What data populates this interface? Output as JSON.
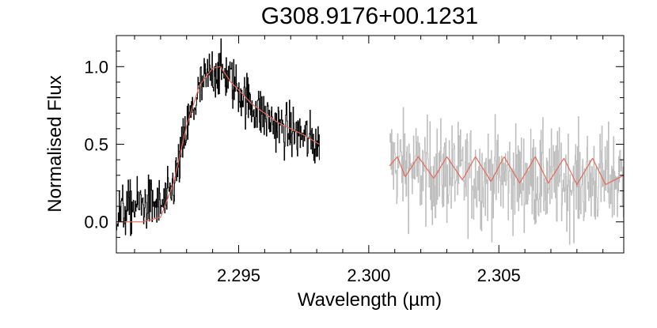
{
  "chart_data": {
    "type": "line",
    "title": "G308.9176+00.1231",
    "xlabel": "Wavelength (µm)",
    "ylabel": "Normalised Flux",
    "xlim": [
      2.2903,
      2.3098
    ],
    "ylim": [
      -0.2,
      1.2
    ],
    "x_ticks": [
      2.295,
      2.3,
      2.305
    ],
    "x_tick_labels": [
      "2.295",
      "2.300",
      "2.305"
    ],
    "y_ticks": [
      0.0,
      0.5,
      1.0
    ],
    "y_tick_labels": [
      "0.0",
      "0.5",
      "1.0"
    ],
    "grid": false,
    "legend": "none",
    "colors": {
      "observed_spectrum": "#000000",
      "second_spectrum": "#bdbdbd",
      "model_fit": "#e8675a"
    },
    "series": [
      {
        "style": "noisy-step",
        "x_range": [
          2.2903,
          2.2981
        ],
        "noise": 0.15,
        "x": [
          2.2903,
          2.291,
          2.2915,
          2.292,
          2.2923,
          2.2926,
          2.293,
          2.2935,
          2.294,
          2.2945,
          2.295,
          2.2955,
          2.296,
          2.2965,
          2.297,
          2.2975,
          2.2978,
          2.2981
        ],
        "y": [
          0.05,
          0.1,
          0.12,
          0.1,
          0.15,
          0.3,
          0.6,
          0.85,
          0.98,
          0.95,
          0.85,
          0.75,
          0.68,
          0.62,
          0.58,
          0.55,
          0.52,
          0.5
        ]
      },
      {
        "style": "noisy-step",
        "x_range": [
          2.3008,
          2.3098
        ],
        "noise": 0.28,
        "x": [
          2.3008,
          2.302,
          2.304,
          2.306,
          2.308,
          2.3098
        ],
        "y": [
          0.4,
          0.32,
          0.3,
          0.28,
          0.26,
          0.28
        ]
      },
      {
        "style": "smooth",
        "x_range": [
          2.2903,
          2.2981
        ],
        "x": [
          2.2903,
          2.2913,
          2.292,
          2.2925,
          2.293,
          2.2935,
          2.294,
          2.2943,
          2.2947,
          2.295,
          2.2955,
          2.296,
          2.2965,
          2.297,
          2.2975,
          2.2981
        ],
        "y": [
          0.0,
          0.0,
          0.03,
          0.25,
          0.62,
          0.88,
          0.99,
          1.0,
          0.9,
          0.85,
          0.76,
          0.7,
          0.64,
          0.6,
          0.56,
          0.5
        ]
      },
      {
        "style": "periodic",
        "x_range": [
          2.3008,
          2.3098
        ],
        "x": [
          2.3008,
          2.3011,
          2.3014,
          2.3019,
          2.3025,
          2.303,
          2.3036,
          2.3041,
          2.3047,
          2.3052,
          2.3058,
          2.3064,
          2.3069,
          2.3075,
          2.308,
          2.3086,
          2.3091,
          2.3098
        ],
        "y": [
          0.36,
          0.42,
          0.29,
          0.42,
          0.28,
          0.42,
          0.27,
          0.42,
          0.26,
          0.42,
          0.25,
          0.42,
          0.25,
          0.41,
          0.24,
          0.41,
          0.24,
          0.3
        ]
      }
    ]
  }
}
